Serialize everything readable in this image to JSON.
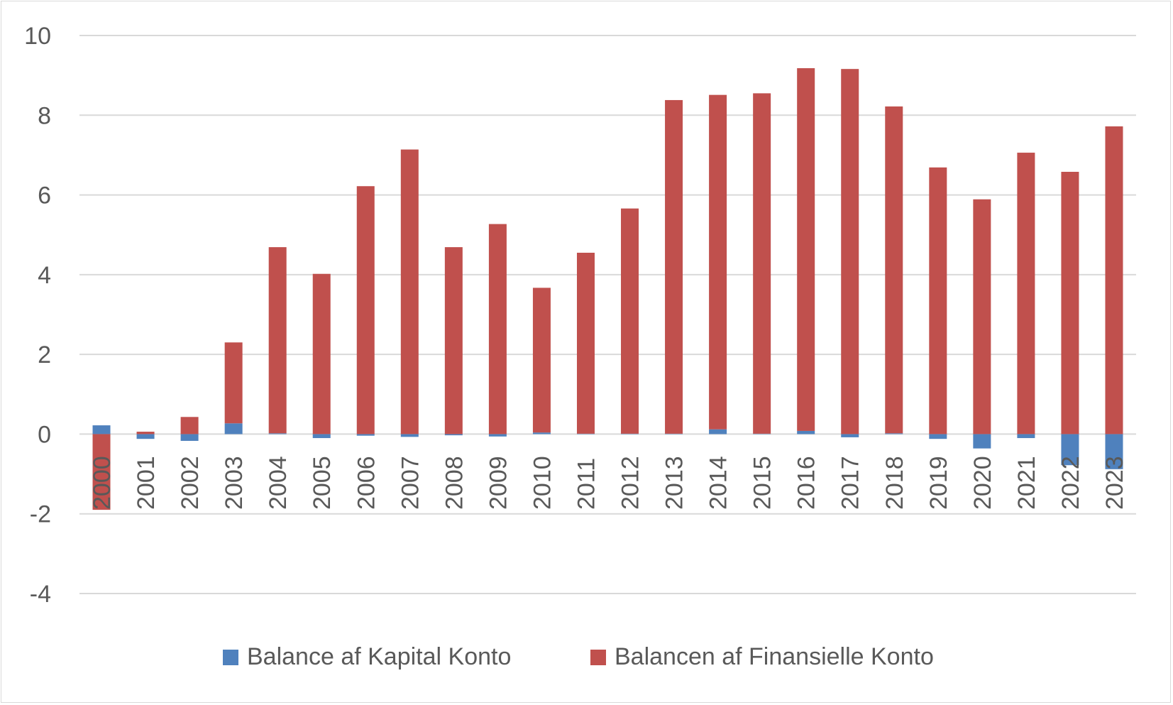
{
  "chart_data": {
    "type": "bar",
    "stacked": true,
    "title": "",
    "xlabel": "",
    "ylabel": "",
    "ylim": [
      -4,
      10
    ],
    "yticks": [
      -4,
      -2,
      0,
      2,
      4,
      6,
      8,
      10
    ],
    "grid": true,
    "legend_position": "bottom",
    "categories": [
      "2000",
      "2001",
      "2002",
      "2003",
      "2004",
      "2005",
      "2006",
      "2007",
      "2008",
      "2009",
      "2010",
      "2011",
      "2012",
      "2013",
      "2014",
      "2015",
      "2016",
      "2017",
      "2018",
      "2019",
      "2020",
      "2021",
      "2022",
      "2023"
    ],
    "series": [
      {
        "name": "Balance af Kapital Konto",
        "color": "#4f81bd",
        "values": [
          0.22,
          -0.12,
          -0.17,
          0.27,
          0.02,
          -0.1,
          -0.04,
          -0.07,
          -0.03,
          -0.06,
          0.04,
          0.01,
          0.01,
          0.01,
          0.12,
          0.01,
          0.08,
          -0.08,
          0.02,
          -0.12,
          -0.36,
          -0.1,
          -0.78,
          -0.88
        ]
      },
      {
        "name": "Balancen af Finansielle Konto",
        "color": "#c0504d",
        "values": [
          -1.9,
          0.06,
          0.43,
          2.03,
          4.67,
          4.02,
          6.22,
          7.14,
          4.69,
          5.27,
          3.63,
          4.54,
          5.65,
          8.37,
          8.39,
          8.54,
          9.1,
          9.16,
          8.2,
          6.69,
          5.89,
          7.06,
          6.58,
          7.72
        ]
      }
    ]
  }
}
